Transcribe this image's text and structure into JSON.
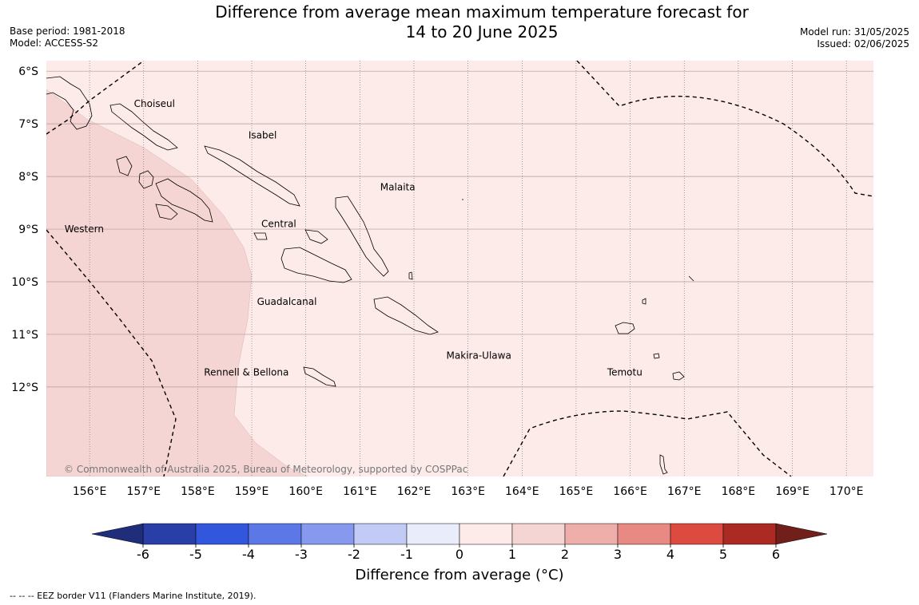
{
  "header": {
    "title_line1": "Difference from average mean maximum temperature forecast for",
    "title_line2": "14 to 20 June 2025",
    "base_period": "Base period: 1981-2018",
    "model": "Model: ACCESS-S2",
    "model_run": "Model run: 31/05/2025",
    "issued": "Issued: 02/06/2025"
  },
  "map": {
    "lon_range": [
      155.2,
      170.5
    ],
    "lat_range": [
      -13.7,
      -5.8
    ],
    "lon_ticks": [
      "156°E",
      "157°E",
      "158°E",
      "159°E",
      "160°E",
      "161°E",
      "162°E",
      "163°E",
      "164°E",
      "165°E",
      "166°E",
      "167°E",
      "168°E",
      "169°E",
      "170°E"
    ],
    "lat_ticks": [
      "6°S",
      "7°S",
      "8°S",
      "9°S",
      "10°S",
      "11°S",
      "12°S"
    ],
    "province_labels": [
      {
        "name": "Choiseul",
        "lon": 157.2,
        "lat": -6.62
      },
      {
        "name": "Isabel",
        "lon": 159.2,
        "lat": -7.22
      },
      {
        "name": "Malaita",
        "lon": 161.7,
        "lat": -8.2
      },
      {
        "name": "Western",
        "lon": 155.9,
        "lat": -9.0
      },
      {
        "name": "Central",
        "lon": 159.5,
        "lat": -8.9
      },
      {
        "name": "Guadalcanal",
        "lon": 159.65,
        "lat": -10.38
      },
      {
        "name": "Makira-Ulawa",
        "lon": 163.2,
        "lat": -11.4
      },
      {
        "name": "Rennell & Bellona",
        "lon": 158.9,
        "lat": -11.72
      },
      {
        "name": "Temotu",
        "lon": 165.9,
        "lat": -11.72
      }
    ],
    "copyright": "© Commonwealth of Australia 2025, Bureau of Meteorology, supported by COSPPac",
    "colors": {
      "anomaly_0_1": "#fcebe9",
      "anomaly_1_2": "#f5d5d3"
    }
  },
  "colorbar": {
    "title": "Difference from average ($^\\circ$C)",
    "title_display": "Difference from average (°C)",
    "ticks": [
      "-6",
      "-5",
      "-4",
      "-3",
      "-2",
      "-1",
      "0",
      "1",
      "2",
      "3",
      "4",
      "5",
      "6"
    ],
    "colors": [
      "#2a3ea7",
      "#3256dc",
      "#5b78e6",
      "#8699ee",
      "#c1cbf5",
      "#e9ecfb",
      "#fcebe9",
      "#f5d5d3",
      "#eeafab",
      "#e88a83",
      "#dd4a3f",
      "#ab2a24"
    ],
    "under_color": "#1f2d7b",
    "over_color": "#711f1b"
  },
  "footnote": "--  --  -- EEZ border V11 (Flanders Marine Institute, 2019)."
}
